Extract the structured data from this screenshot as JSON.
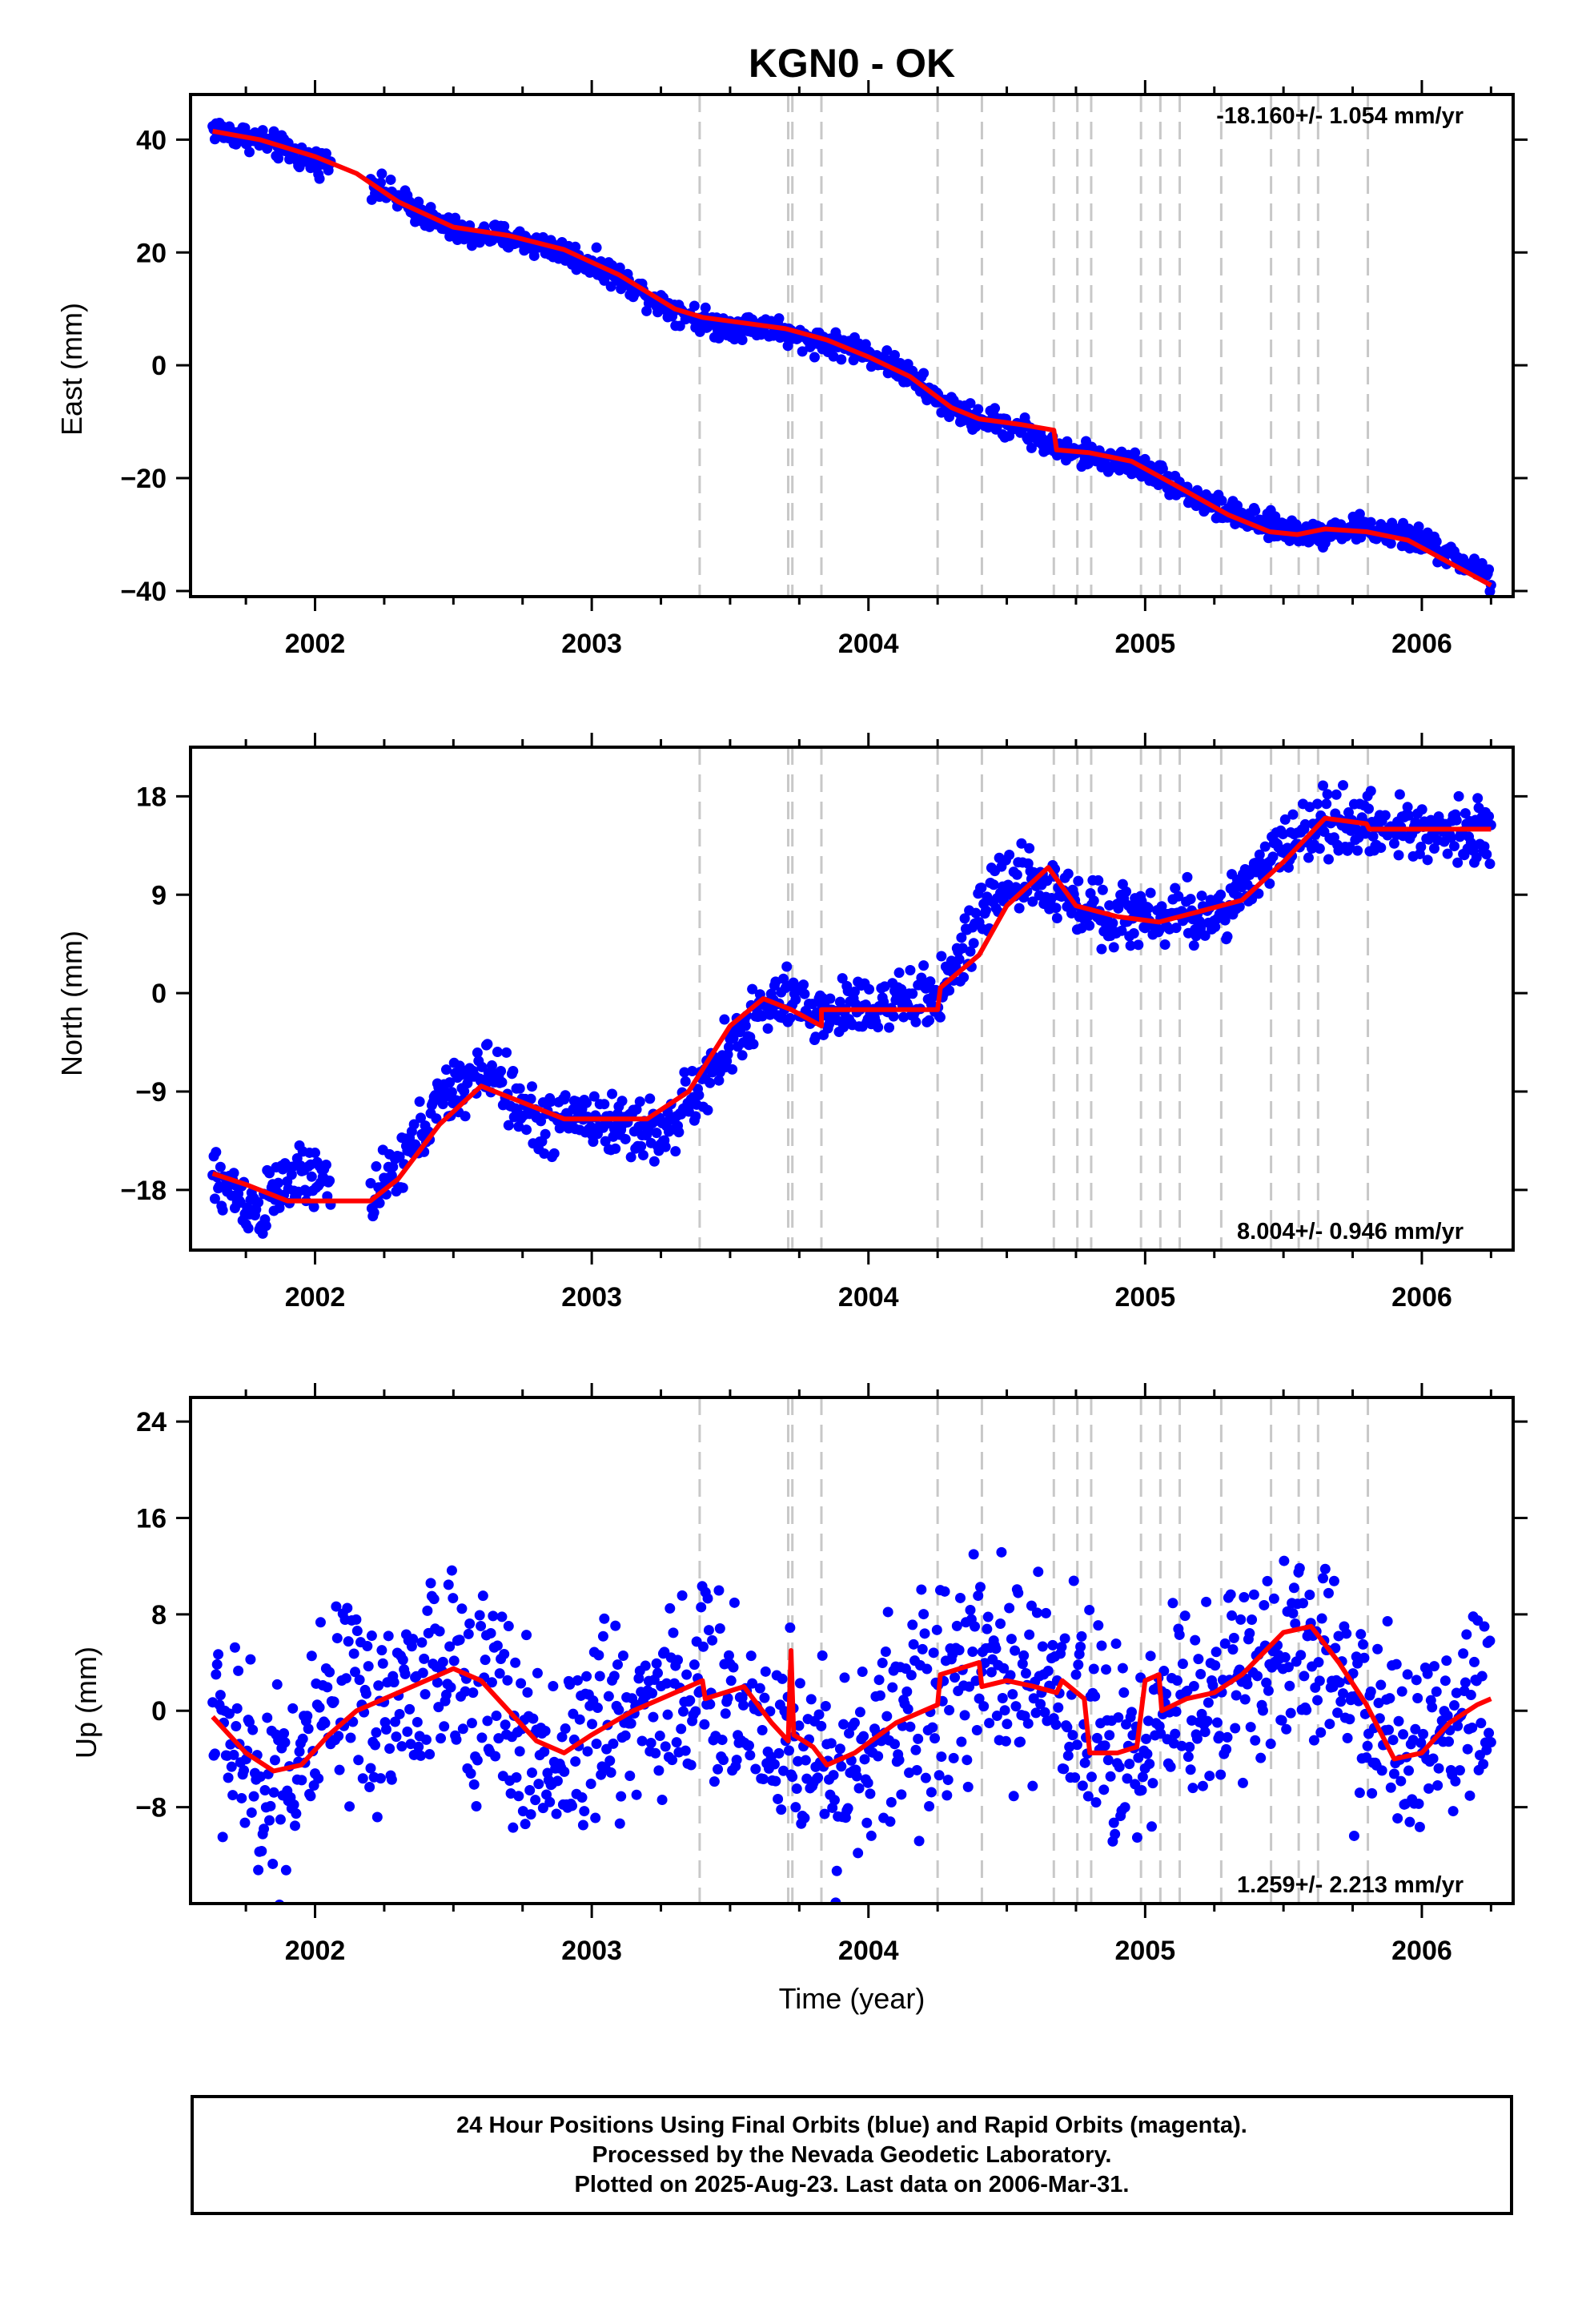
{
  "chart_data": [
    {
      "type": "scatter",
      "title": "KGN0 - OK",
      "ylabel": "East (mm)",
      "xlabel": "",
      "ylim": [
        -41,
        48
      ],
      "xlim": [
        2001.55,
        2006.33
      ],
      "yticks": [
        40,
        20,
        0,
        -20,
        -40
      ],
      "ytick_labels": [
        "40",
        "20",
        "0",
        "−20",
        "−40"
      ],
      "xticks": [
        2002,
        2003,
        2004,
        2005,
        2006
      ],
      "xtick_labels": [
        "2002",
        "2003",
        "2004",
        "2005",
        "2006"
      ],
      "rate_label": "-18.160+/- 1.054 mm/yr",
      "rate_position": "top-right",
      "grid": false,
      "series": [
        {
          "name": "Final Orbits",
          "color": "#0000ff",
          "kind": "points",
          "x": [
            2001.63,
            2001.7,
            2001.8,
            2001.9,
            2002.0,
            2002.08,
            2002.25,
            2002.35,
            2002.45,
            2002.55,
            2002.65,
            2002.75,
            2002.85,
            2002.95,
            2003.05,
            2003.15,
            2003.25,
            2003.35,
            2003.45,
            2003.55,
            2003.65,
            2003.72,
            2003.85,
            2003.95,
            2004.05,
            2004.15,
            2004.25,
            2004.35,
            2004.45,
            2004.55,
            2004.68,
            2004.78,
            2004.9,
            2005.0,
            2005.1,
            2005.2,
            2005.3,
            2005.4,
            2005.5,
            2005.6,
            2005.7,
            2005.8,
            2005.9,
            2006.0,
            2006.1,
            2006.2,
            2006.25
          ],
          "y": [
            42,
            41,
            40,
            38,
            36,
            36,
            31,
            28,
            25,
            23,
            23,
            22,
            21,
            19,
            17,
            14,
            11,
            9,
            7,
            7,
            7,
            5,
            4,
            3,
            1,
            -2,
            -6,
            -9,
            -10,
            -11,
            -15,
            -16,
            -17,
            -18,
            -21,
            -24,
            -26,
            -28,
            -29,
            -30,
            -29,
            -29,
            -30,
            -31,
            -34,
            -36,
            -38
          ]
        },
        {
          "name": "Model",
          "color": "#ff0000",
          "kind": "line",
          "x": [
            2001.63,
            2001.8,
            2002.0,
            2002.15,
            2002.3,
            2002.5,
            2002.7,
            2002.9,
            2003.1,
            2003.3,
            2003.4,
            2003.55,
            2003.7,
            2003.85,
            2004.0,
            2004.15,
            2004.3,
            2004.4,
            2004.55,
            2004.67,
            2004.68,
            2004.8,
            2004.95,
            2005.1,
            2005.3,
            2005.45,
            2005.55,
            2005.65,
            2005.8,
            2005.95,
            2006.1,
            2006.25
          ],
          "y": [
            41.5,
            40,
            37,
            34,
            29,
            24.5,
            23,
            20.5,
            16,
            10,
            8.5,
            7.5,
            6.5,
            4.5,
            1.5,
            -2,
            -7.5,
            -9.5,
            -10.5,
            -11.5,
            -15,
            -15.5,
            -17,
            -21,
            -26.5,
            -29.5,
            -30,
            -29,
            -29.5,
            -31,
            -35,
            -39
          ]
        }
      ]
    },
    {
      "type": "scatter",
      "title": "",
      "ylabel": "North (mm)",
      "xlabel": "",
      "ylim": [
        -23.5,
        22.5
      ],
      "xlim": [
        2001.55,
        2006.33
      ],
      "yticks": [
        18,
        9,
        0,
        -9,
        -18
      ],
      "ytick_labels": [
        "18",
        "9",
        "0",
        "−9",
        "−18"
      ],
      "xticks": [
        2002,
        2003,
        2004,
        2005,
        2006
      ],
      "xtick_labels": [
        "2002",
        "2003",
        "2004",
        "2005",
        "2006"
      ],
      "rate_label": "8.004+/- 0.946 mm/yr",
      "rate_position": "bottom-right",
      "grid": false,
      "series": [
        {
          "name": "Final Orbits",
          "color": "#0000ff",
          "kind": "points",
          "x": [
            2001.63,
            2001.7,
            2001.8,
            2001.9,
            2002.0,
            2002.08,
            2002.25,
            2002.35,
            2002.45,
            2002.55,
            2002.65,
            2002.75,
            2002.85,
            2002.95,
            2003.05,
            2003.15,
            2003.25,
            2003.35,
            2003.45,
            2003.55,
            2003.65,
            2003.72,
            2003.85,
            2003.95,
            2004.05,
            2004.15,
            2004.25,
            2004.35,
            2004.45,
            2004.55,
            2004.68,
            2004.78,
            2004.9,
            2005.0,
            2005.1,
            2005.2,
            2005.3,
            2005.4,
            2005.5,
            2005.6,
            2005.7,
            2005.8,
            2005.9,
            2006.0,
            2006.1,
            2006.2,
            2006.25
          ],
          "y": [
            -17,
            -18,
            -20,
            -17,
            -17,
            -18,
            -18,
            -14,
            -10,
            -8,
            -7,
            -11,
            -12,
            -11,
            -12,
            -12,
            -13,
            -10,
            -7,
            -3,
            -1,
            -1,
            -2,
            -1,
            -1,
            -1,
            0,
            4,
            9,
            11,
            9,
            8,
            7,
            7,
            7,
            7,
            8,
            10,
            14,
            15,
            16,
            15,
            15,
            15,
            15,
            15,
            15
          ]
        },
        {
          "name": "Model",
          "color": "#ff0000",
          "kind": "line",
          "x": [
            2001.63,
            2001.75,
            2001.9,
            2002.05,
            2002.2,
            2002.3,
            2002.45,
            2002.6,
            2002.75,
            2002.9,
            2003.05,
            2003.2,
            2003.35,
            2003.5,
            2003.62,
            2003.72,
            2003.83,
            2003.83,
            2004.0,
            2004.25,
            2004.26,
            2004.4,
            2004.5,
            2004.65,
            2004.75,
            2004.9,
            2005.05,
            2005.2,
            2005.35,
            2005.5,
            2005.65,
            2005.8,
            2005.81,
            2006.0,
            2006.25
          ],
          "y": [
            -16.5,
            -17.5,
            -19,
            -19,
            -19,
            -17,
            -12,
            -8.5,
            -10,
            -11.5,
            -11.5,
            -11.5,
            -9,
            -3,
            -0.5,
            -1.5,
            -3,
            -1.5,
            -1.5,
            -1.5,
            0.5,
            3.5,
            8,
            11.5,
            8,
            7,
            6.5,
            7.5,
            8.5,
            12,
            16,
            15.5,
            15,
            15,
            15
          ]
        }
      ]
    },
    {
      "type": "scatter",
      "title": "",
      "ylabel": "Up (mm)",
      "xlabel": "Time (year)",
      "ylim": [
        -16,
        26
      ],
      "xlim": [
        2001.55,
        2006.33
      ],
      "yticks": [
        24,
        16,
        8,
        0,
        -8
      ],
      "ytick_labels": [
        "24",
        "16",
        "8",
        "0",
        "−8"
      ],
      "xticks": [
        2002,
        2003,
        2004,
        2005,
        2006
      ],
      "xtick_labels": [
        "2002",
        "2003",
        "2004",
        "2005",
        "2006"
      ],
      "rate_label": "1.259+/- 2.213 mm/yr",
      "rate_position": "bottom-right",
      "grid": false,
      "series": [
        {
          "name": "Final Orbits",
          "color": "#0000ff",
          "kind": "points",
          "x": [
            2001.63,
            2001.7,
            2001.8,
            2001.9,
            2002.0,
            2002.08,
            2002.25,
            2002.35,
            2002.45,
            2002.55,
            2002.65,
            2002.75,
            2002.85,
            2002.95,
            2003.05,
            2003.15,
            2003.25,
            2003.35,
            2003.45,
            2003.55,
            2003.65,
            2003.72,
            2003.85,
            2003.95,
            2004.05,
            2004.15,
            2004.25,
            2004.35,
            2004.45,
            2004.55,
            2004.68,
            2004.78,
            2004.9,
            2005.0,
            2005.1,
            2005.2,
            2005.3,
            2005.4,
            2005.5,
            2005.6,
            2005.7,
            2005.8,
            2005.9,
            2006.0,
            2006.1,
            2006.2,
            2006.25
          ],
          "y": [
            0,
            -3,
            -6,
            -5,
            -3,
            0,
            0,
            2,
            3,
            3,
            1,
            -3,
            -4,
            -3,
            -1,
            0,
            1,
            2,
            2,
            0,
            -1,
            -2,
            -5,
            -4,
            -2,
            0,
            1,
            3,
            3,
            2,
            2,
            0,
            -3,
            -2,
            0,
            1,
            2,
            4,
            6,
            5,
            3,
            0,
            -3,
            -4,
            -3,
            -1,
            1
          ]
        },
        {
          "name": "Model",
          "color": "#ff0000",
          "kind": "line",
          "x": [
            2001.63,
            2001.75,
            2001.85,
            2001.95,
            2002.05,
            2002.15,
            2002.3,
            2002.4,
            2002.5,
            2002.6,
            2002.7,
            2002.8,
            2002.9,
            2003.0,
            2003.15,
            2003.3,
            2003.4,
            2003.41,
            2003.55,
            2003.65,
            2003.71,
            2003.72,
            2003.73,
            2003.8,
            2003.85,
            2003.95,
            2004.1,
            2004.25,
            2004.26,
            2004.4,
            2004.41,
            2004.5,
            2004.6,
            2004.68,
            2004.7,
            2004.78,
            2004.8,
            2004.9,
            2004.97,
            2005.0,
            2005.05,
            2005.06,
            2005.15,
            2005.25,
            2005.35,
            2005.5,
            2005.6,
            2005.7,
            2005.8,
            2005.9,
            2006.0,
            2006.1,
            2006.2,
            2006.25
          ],
          "y": [
            -0.5,
            -3.5,
            -5,
            -4.5,
            -2,
            0,
            1.5,
            2.5,
            3.5,
            2.5,
            0,
            -2.5,
            -3.5,
            -2,
            0,
            1.5,
            2.5,
            1,
            2,
            -1,
            -2.5,
            5,
            -2,
            -3,
            -4.5,
            -3.5,
            -1,
            0.5,
            3,
            4,
            2,
            2.5,
            2,
            1.5,
            2.5,
            1,
            -3.5,
            -3.5,
            -3,
            2.5,
            3,
            0,
            1,
            1.5,
            3,
            6.5,
            7,
            4,
            0.5,
            -4,
            -3.5,
            -1,
            0.5,
            1
          ]
        }
      ]
    }
  ],
  "event_lines": {
    "color": "#c8c8c8",
    "x": [
      2003.39,
      2003.71,
      2003.725,
      2003.83,
      2004.25,
      2004.41,
      2004.67,
      2004.755,
      2004.805,
      2004.985,
      2005.055,
      2005.125,
      2005.275,
      2005.455,
      2005.555,
      2005.625,
      2005.805
    ]
  },
  "footer": {
    "line1": "24 Hour Positions Using Final Orbits (blue) and Rapid Orbits (magenta).",
    "line2": "Processed by the Nevada Geodetic Laboratory.",
    "line3": "Plotted on 2025-Aug-23. Last data on 2006-Mar-31."
  }
}
